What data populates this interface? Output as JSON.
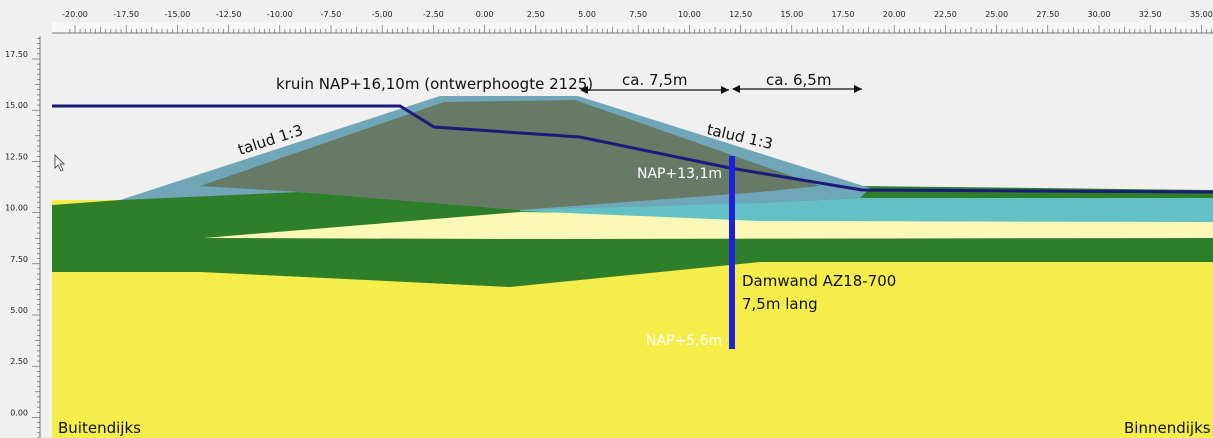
{
  "x_axis": {
    "ticks": [
      "-20.00",
      "-17.50",
      "-15.00",
      "-12.50",
      "-10.00",
      "-7.50",
      "-5.00",
      "-2.50",
      "0.00",
      "2.50",
      "5.00",
      "7.50",
      "10.00",
      "12.50",
      "15.00",
      "17.50",
      "20.00",
      "22.50",
      "25.00",
      "27.50",
      "30.00",
      "32.50",
      "35.00"
    ]
  },
  "y_axis": {
    "ticks": [
      "17.50",
      "15.00",
      "12.50",
      "10.00",
      "7.50",
      "5.00",
      "2.50",
      "0.00"
    ]
  },
  "labels": {
    "crest": "kruin NAP+16,10m (ontwerphoogte 2125)",
    "dim_left": "ca. 7,5m",
    "dim_right": "ca. 6,5m",
    "slope_left": "talud 1:3",
    "slope_right": "talud 1:3",
    "nap_top": "NAP+13,1m",
    "sheetpile_name": "Damwand AZ18-700",
    "sheetpile_len": "7,5m lang",
    "nap_bottom": "NAP+5,6m",
    "outside": "Buitendijks",
    "inside": "Binnendijks"
  },
  "colors": {
    "sand": "#f5ee4a",
    "clay": "#2f7f2a",
    "light_sand": "#fbf7b6",
    "dike_core": "#667a66",
    "dike_cover": "#6fa7b8",
    "water_layer": "#63c0c4",
    "phreatic": "#1a1a7a",
    "sheet_pile": "#2020d8",
    "panel": "#f0f0f0"
  }
}
